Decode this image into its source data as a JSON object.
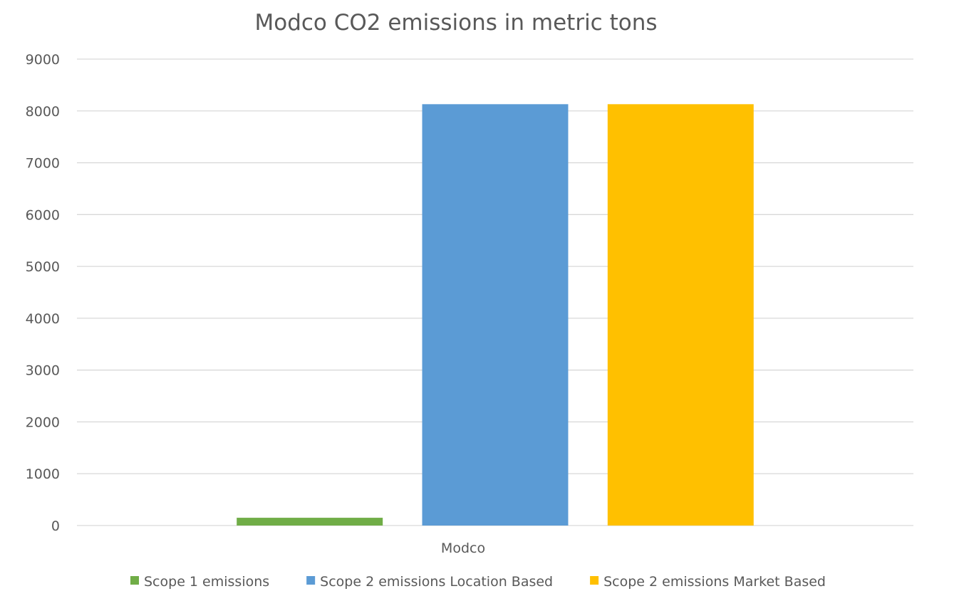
{
  "chart_data": {
    "type": "bar",
    "title": "Modco CO2 emissions in metric tons",
    "categories": [
      "Modco"
    ],
    "series": [
      {
        "name": "Scope 1 emissions",
        "values": [
          150
        ],
        "color": "#70ad47"
      },
      {
        "name": "Scope 2 emissions Location Based",
        "values": [
          8130
        ],
        "color": "#5b9bd5"
      },
      {
        "name": "Scope 2 emissions Market Based",
        "values": [
          8130
        ],
        "color": "#ffc000"
      }
    ],
    "xlabel": "",
    "ylabel": "",
    "ylim": [
      0,
      9000
    ],
    "yticks": [
      "0",
      "1000",
      "2000",
      "3000",
      "4000",
      "5000",
      "6000",
      "7000",
      "8000",
      "9000"
    ],
    "grid": true,
    "legend": "bottom"
  }
}
